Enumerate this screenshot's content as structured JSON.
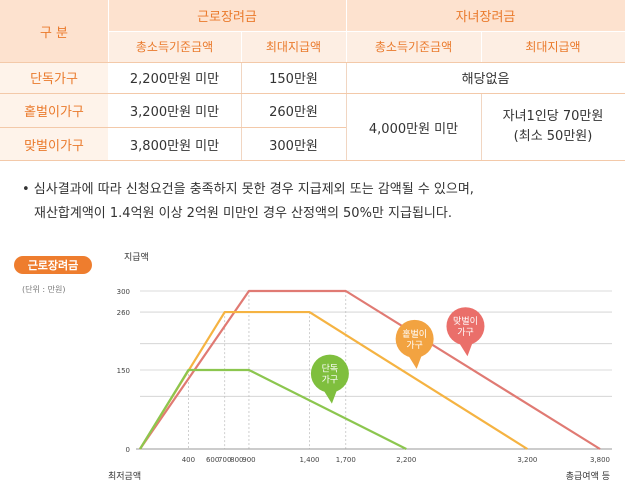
{
  "table": {
    "corner": "구 분",
    "groups": [
      "근로장려금",
      "자녀장려금"
    ],
    "subheaders": [
      "총소득기준금액",
      "최대지급액",
      "총소득기준금액",
      "최대지급액"
    ],
    "rows": [
      {
        "label": "단독가구",
        "income": "2,200만원 미만",
        "max": "150만원"
      },
      {
        "label": "홑벌이가구",
        "income": "3,200만원 미만",
        "max": "260만원"
      },
      {
        "label": "맞벌이가구",
        "income": "3,800만원 미만",
        "max": "300만원"
      }
    ],
    "child_na": "해당없음",
    "child_income": "4,000만원 미만",
    "child_max_line1": "자녀1인당 70만원",
    "child_max_line2": "(최소 50만원)"
  },
  "note": {
    "line1": "• 심사결과에 따라 신청요건을 충족하지 못한 경우 지급제외 또는 감액될 수 있으며,",
    "line2": "재산합계액이 1.4억원 이상 2억원 미만인 경우 산정액의 50%만 지급됩니다."
  },
  "chart_badge": "근로장려금",
  "chart_unit": "(단위 : 만원)",
  "chart_data": {
    "type": "line",
    "title": "근로장려금",
    "ylabel": "지급액",
    "xlabel_left": "최저금액",
    "xlabel_right": "총급여액 등",
    "y_ticks": [
      0,
      150,
      260,
      300
    ],
    "x_ticks": [
      400,
      600,
      700,
      800,
      900,
      1400,
      1700,
      2200,
      3200,
      3800
    ],
    "xlim": [
      0,
      3800
    ],
    "ylim": [
      0,
      300
    ],
    "grid": true,
    "series": [
      {
        "name": "맞벌이가구",
        "callout": [
          "맞벌이",
          "가구"
        ],
        "color": "#e07a73",
        "bubble": "#ea6f6a",
        "x": [
          0,
          900,
          1700,
          3800
        ],
        "y": [
          0,
          300,
          300,
          0
        ]
      },
      {
        "name": "홑벌이가구",
        "callout": [
          "홑벌이",
          "가구"
        ],
        "color": "#f5b342",
        "bubble": "#f2a341",
        "x": [
          0,
          700,
          1400,
          3200
        ],
        "y": [
          0,
          260,
          260,
          0
        ]
      },
      {
        "name": "단독가구",
        "callout": [
          "단독",
          "가구"
        ],
        "color": "#8cc64f",
        "bubble": "#7fbf3e",
        "x": [
          0,
          400,
          900,
          2200
        ],
        "y": [
          0,
          150,
          150,
          0
        ]
      }
    ]
  }
}
